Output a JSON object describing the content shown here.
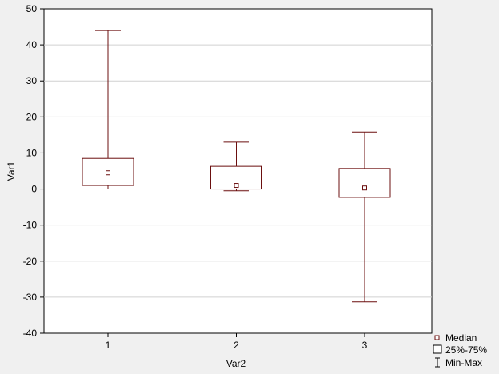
{
  "chart_data": {
    "type": "boxplot",
    "xlabel": "Var2",
    "ylabel": "Var1",
    "ylim": [
      -40,
      50
    ],
    "yticks": [
      -40,
      -30,
      -20,
      -10,
      0,
      10,
      20,
      30,
      40,
      50
    ],
    "categories": [
      "1",
      "2",
      "3"
    ],
    "boxes": [
      {
        "category": "1",
        "min": 0,
        "q1": 1,
        "median": 4.5,
        "q3": 8.5,
        "max": 44
      },
      {
        "category": "2",
        "min": -0.5,
        "q1": 0,
        "median": 1,
        "q3": 6.3,
        "max": 13
      },
      {
        "category": "3",
        "min": -31.3,
        "q1": -2.3,
        "median": 0.3,
        "q3": 5.7,
        "max": 15.8
      }
    ],
    "grid": true,
    "legend_position": "bottom-right",
    "legend": [
      {
        "symbol": "median",
        "label": "Median"
      },
      {
        "symbol": "box",
        "label": "25%-75%"
      },
      {
        "symbol": "whisker",
        "label": "Min-Max"
      }
    ],
    "colors": {
      "series": "#6b0f0f",
      "background": "#f0f0f0",
      "plot_background": "#ffffff",
      "grid": "#d0d0d0"
    }
  }
}
